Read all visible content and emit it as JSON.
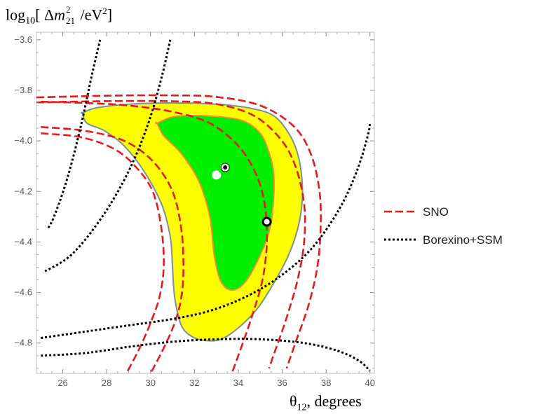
{
  "chart_data": {
    "type": "contour",
    "ylabel": "log10[ Δm²21 /eV²]",
    "ylabel_parts": {
      "prefix": "log",
      "prefix_sub": "10",
      "open": "[ Δ",
      "m": "m",
      "sup": "2",
      "sub": "21",
      "rest": " /eV",
      "rest_sup": "2",
      "close": "]"
    },
    "xlabel": "θ12, degrees",
    "xlabel_parts": {
      "theta": "θ",
      "sub": "12",
      "rest": ", degrees"
    },
    "xlim": [
      24.8,
      40.2
    ],
    "ylim": [
      -4.92,
      -3.57
    ],
    "xticks": [
      "26",
      "28",
      "30",
      "32",
      "34",
      "36",
      "38",
      "40"
    ],
    "yticks": [
      "-3.6",
      "-3.8",
      "-4.0",
      "-4.2",
      "-4.4",
      "-4.6",
      "-4.8"
    ],
    "xtick_values": [
      26,
      28,
      30,
      32,
      34,
      36,
      38,
      40
    ],
    "ytick_values": [
      -3.6,
      -3.8,
      -4.0,
      -4.2,
      -4.4,
      -4.6,
      -4.8
    ],
    "legend": [
      {
        "label": "SNO",
        "color": "#e41a1c",
        "style": "dashed"
      },
      {
        "label": "Borexino+SSM",
        "color": "#000000",
        "style": "dotted"
      }
    ],
    "legend_position": "right",
    "colors": {
      "outer_region_fill": "#ffff00",
      "inner_region_fill": "#00ee00",
      "outer_region_edge": "#7a8fa0",
      "inner_region_edge": "#f08c3c",
      "sno": "#e41a1c",
      "borexino": "#000000",
      "plot_background": "#ffffff"
    },
    "regions": [
      {
        "level": "outer",
        "fill": "yellow",
        "boundary": [
          [
            26.9,
            -3.89
          ],
          [
            27.5,
            -3.87
          ],
          [
            29.0,
            -3.855
          ],
          [
            31.0,
            -3.85
          ],
          [
            33.0,
            -3.855
          ],
          [
            34.5,
            -3.87
          ],
          [
            35.6,
            -3.9
          ],
          [
            36.3,
            -3.97
          ],
          [
            36.7,
            -4.05
          ],
          [
            36.9,
            -4.15
          ],
          [
            36.9,
            -4.25
          ],
          [
            36.7,
            -4.35
          ],
          [
            36.3,
            -4.45
          ],
          [
            35.7,
            -4.55
          ],
          [
            34.9,
            -4.66
          ],
          [
            34.0,
            -4.74
          ],
          [
            33.2,
            -4.785
          ],
          [
            32.5,
            -4.79
          ],
          [
            31.9,
            -4.775
          ],
          [
            31.4,
            -4.73
          ],
          [
            31.1,
            -4.62
          ],
          [
            31.0,
            -4.5
          ],
          [
            30.9,
            -4.38
          ],
          [
            30.5,
            -4.25
          ],
          [
            29.7,
            -4.12
          ],
          [
            28.8,
            -4.02
          ],
          [
            27.9,
            -3.96
          ],
          [
            27.1,
            -3.93
          ],
          [
            26.9,
            -3.89
          ]
        ]
      },
      {
        "level": "inner",
        "fill": "green",
        "boundary": [
          [
            30.3,
            -3.93
          ],
          [
            31.0,
            -3.905
          ],
          [
            32.0,
            -3.9
          ],
          [
            33.2,
            -3.905
          ],
          [
            34.2,
            -3.92
          ],
          [
            34.9,
            -3.96
          ],
          [
            35.3,
            -4.02
          ],
          [
            35.6,
            -4.12
          ],
          [
            35.6,
            -4.24
          ],
          [
            35.4,
            -4.36
          ],
          [
            34.9,
            -4.47
          ],
          [
            34.3,
            -4.56
          ],
          [
            33.7,
            -4.59
          ],
          [
            33.2,
            -4.555
          ],
          [
            32.9,
            -4.45
          ],
          [
            32.7,
            -4.3
          ],
          [
            32.2,
            -4.16
          ],
          [
            31.4,
            -4.05
          ],
          [
            30.6,
            -3.98
          ],
          [
            30.3,
            -3.93
          ]
        ]
      }
    ],
    "sno_curves": [
      [
        [
          24.8,
          -3.828
        ],
        [
          27,
          -3.823
        ],
        [
          29,
          -3.82
        ],
        [
          31,
          -3.82
        ],
        [
          33,
          -3.826
        ],
        [
          35,
          -3.86
        ],
        [
          36.5,
          -3.94
        ],
        [
          37.3,
          -4.05
        ],
        [
          37.7,
          -4.2
        ],
        [
          37.75,
          -4.35
        ],
        [
          37.6,
          -4.5
        ],
        [
          37.2,
          -4.65
        ],
        [
          36.6,
          -4.8
        ],
        [
          36.2,
          -4.9
        ]
      ],
      [
        [
          24.8,
          -3.848
        ],
        [
          27,
          -3.844
        ],
        [
          29,
          -3.842
        ],
        [
          31,
          -3.843
        ],
        [
          33,
          -3.854
        ],
        [
          34.7,
          -3.9
        ],
        [
          35.9,
          -3.99
        ],
        [
          36.6,
          -4.1
        ],
        [
          37.0,
          -4.25
        ],
        [
          37.0,
          -4.4
        ],
        [
          36.7,
          -4.55
        ],
        [
          36.2,
          -4.7
        ],
        [
          35.6,
          -4.85
        ],
        [
          35.4,
          -4.9
        ]
      ],
      [
        [
          25.0,
          -3.945
        ],
        [
          27,
          -3.96
        ],
        [
          28.8,
          -4.0
        ],
        [
          30.1,
          -4.08
        ],
        [
          31.0,
          -4.2
        ],
        [
          31.4,
          -4.35
        ],
        [
          31.5,
          -4.5
        ],
        [
          31.4,
          -4.62
        ],
        [
          31.1,
          -4.72
        ],
        [
          30.6,
          -4.82
        ],
        [
          30.0,
          -4.92
        ]
      ],
      [
        [
          25.0,
          -3.97
        ],
        [
          26.8,
          -3.985
        ],
        [
          28.3,
          -4.03
        ],
        [
          29.3,
          -4.1
        ],
        [
          30.1,
          -4.2
        ],
        [
          30.5,
          -4.35
        ],
        [
          30.6,
          -4.5
        ],
        [
          30.4,
          -4.62
        ],
        [
          30.0,
          -4.72
        ],
        [
          29.5,
          -4.82
        ],
        [
          28.9,
          -4.92
        ]
      ],
      [
        [
          25.0,
          -3.845
        ],
        [
          27,
          -3.85
        ],
        [
          29,
          -3.86
        ],
        [
          31,
          -3.885
        ],
        [
          32.7,
          -3.93
        ],
        [
          34,
          -4.02
        ],
        [
          34.8,
          -4.13
        ],
        [
          35.2,
          -4.25
        ],
        [
          35.3,
          -4.4
        ],
        [
          35.1,
          -4.55
        ],
        [
          34.6,
          -4.7
        ],
        [
          34.0,
          -4.85
        ],
        [
          33.7,
          -4.92
        ]
      ]
    ],
    "borexino_curves": [
      [
        [
          27.7,
          -3.6
        ],
        [
          27.3,
          -3.75
        ],
        [
          26.8,
          -3.95
        ],
        [
          26.2,
          -4.15
        ],
        [
          25.6,
          -4.3
        ],
        [
          25.3,
          -4.35
        ]
      ],
      [
        [
          30.9,
          -3.6
        ],
        [
          30.5,
          -3.75
        ],
        [
          29.9,
          -3.93
        ],
        [
          29.0,
          -4.12
        ],
        [
          27.8,
          -4.3
        ],
        [
          26.4,
          -4.45
        ],
        [
          25.1,
          -4.52
        ]
      ],
      [
        [
          25.0,
          -4.78
        ],
        [
          27,
          -4.755
        ],
        [
          29,
          -4.73
        ],
        [
          31,
          -4.705
        ],
        [
          32.8,
          -4.67
        ],
        [
          34.5,
          -4.61
        ],
        [
          36,
          -4.53
        ],
        [
          37.4,
          -4.42
        ],
        [
          38.6,
          -4.27
        ],
        [
          39.4,
          -4.12
        ],
        [
          39.9,
          -3.98
        ],
        [
          40.0,
          -3.93
        ]
      ],
      [
        [
          25.0,
          -4.85
        ],
        [
          27,
          -4.84
        ],
        [
          29,
          -4.815
        ],
        [
          31,
          -4.795
        ],
        [
          33,
          -4.785
        ],
        [
          35,
          -4.785
        ],
        [
          37,
          -4.8
        ],
        [
          38.5,
          -4.83
        ],
        [
          39.5,
          -4.87
        ],
        [
          40.0,
          -4.91
        ]
      ]
    ],
    "markers": [
      {
        "x": 33.4,
        "y": -4.105,
        "style": "white-ring-black-dot"
      },
      {
        "x": 33.0,
        "y": -4.135,
        "style": "white-dot"
      },
      {
        "x": 35.3,
        "y": -4.32,
        "style": "white-ring-black-outline"
      }
    ]
  }
}
